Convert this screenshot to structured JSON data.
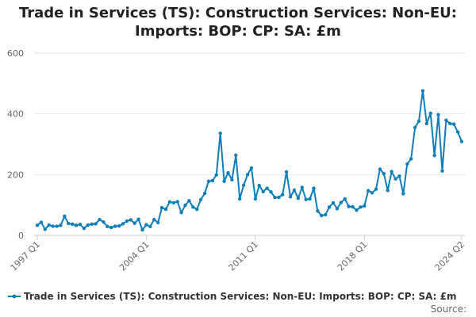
{
  "chart_data": {
    "type": "line",
    "title": "Trade in Services (TS): Construction Services: Non-EU: Imports: BOP: CP: SA: £m",
    "xlabel": "",
    "ylabel": "",
    "ylim": [
      0,
      600
    ],
    "yticks": [
      0,
      200,
      400,
      600
    ],
    "ytick_labels": [
      "0",
      "200",
      "400",
      "600"
    ],
    "xticks": [
      {
        "x": "1997 Q1",
        "label": "1997 Q1"
      },
      {
        "x": "2004 Q1",
        "label": "2004 Q1"
      },
      {
        "x": "2011 Q1",
        "label": "2011 Q1"
      },
      {
        "x": "2018 Q1",
        "label": "2018 Q1"
      },
      {
        "x": "2024 Q2",
        "label": "2024 Q2"
      }
    ],
    "grid": true,
    "legend_position": "bottom",
    "color": "#0f7fb8",
    "series": [
      {
        "name": "Trade in Services (TS): Construction Services: Non-EU: Imports: BOP: CP: SA: £m",
        "x": [
          "1997 Q1",
          "1997 Q2",
          "1997 Q3",
          "1997 Q4",
          "1998 Q1",
          "1998 Q2",
          "1998 Q3",
          "1998 Q4",
          "1999 Q1",
          "1999 Q2",
          "1999 Q3",
          "1999 Q4",
          "2000 Q1",
          "2000 Q2",
          "2000 Q3",
          "2000 Q4",
          "2001 Q1",
          "2001 Q2",
          "2001 Q3",
          "2001 Q4",
          "2002 Q1",
          "2002 Q2",
          "2002 Q3",
          "2002 Q4",
          "2003 Q1",
          "2003 Q2",
          "2003 Q3",
          "2003 Q4",
          "2004 Q1",
          "2004 Q2",
          "2004 Q3",
          "2004 Q4",
          "2005 Q1",
          "2005 Q2",
          "2005 Q3",
          "2005 Q4",
          "2006 Q1",
          "2006 Q2",
          "2006 Q3",
          "2006 Q4",
          "2007 Q1",
          "2007 Q2",
          "2007 Q3",
          "2007 Q4",
          "2008 Q1",
          "2008 Q2",
          "2008 Q3",
          "2008 Q4",
          "2009 Q1",
          "2009 Q2",
          "2009 Q3",
          "2009 Q4",
          "2010 Q1",
          "2010 Q2",
          "2010 Q3",
          "2010 Q4",
          "2011 Q1",
          "2011 Q2",
          "2011 Q3",
          "2011 Q4",
          "2012 Q1",
          "2012 Q2",
          "2012 Q3",
          "2012 Q4",
          "2013 Q1",
          "2013 Q2",
          "2013 Q3",
          "2013 Q4",
          "2014 Q1",
          "2014 Q2",
          "2014 Q3",
          "2014 Q4",
          "2015 Q1",
          "2015 Q2",
          "2015 Q3",
          "2015 Q4",
          "2016 Q1",
          "2016 Q2",
          "2016 Q3",
          "2016 Q4",
          "2017 Q1",
          "2017 Q2",
          "2017 Q3",
          "2017 Q4",
          "2018 Q1",
          "2018 Q2",
          "2018 Q3",
          "2018 Q4",
          "2019 Q1",
          "2019 Q2",
          "2019 Q3",
          "2019 Q4",
          "2020 Q1",
          "2020 Q2",
          "2020 Q3",
          "2020 Q4",
          "2021 Q1",
          "2021 Q2",
          "2021 Q3",
          "2021 Q4",
          "2022 Q1",
          "2022 Q2",
          "2022 Q3",
          "2022 Q4",
          "2023 Q1",
          "2023 Q2",
          "2023 Q3",
          "2023 Q4",
          "2024 Q1",
          "2024 Q2"
        ],
        "values": [
          33,
          43,
          20,
          34,
          30,
          30,
          33,
          63,
          39,
          37,
          33,
          36,
          23,
          34,
          37,
          38,
          52,
          44,
          29,
          26,
          30,
          31,
          38,
          47,
          51,
          40,
          53,
          18,
          35,
          29,
          52,
          42,
          91,
          86,
          110,
          107,
          111,
          75,
          99,
          114,
          93,
          86,
          118,
          138,
          178,
          180,
          199,
          336,
          178,
          206,
          183,
          264,
          120,
          165,
          200,
          222,
          120,
          164,
          144,
          155,
          143,
          125,
          125,
          134,
          209,
          127,
          149,
          122,
          158,
          118,
          120,
          155,
          80,
          65,
          68,
          93,
          107,
          88,
          108,
          120,
          95,
          94,
          83,
          93,
          97,
          147,
          140,
          152,
          218,
          203,
          148,
          210,
          186,
          195,
          137,
          235,
          252,
          355,
          376,
          476,
          368,
          402,
          263,
          397,
          212,
          379,
          368,
          366,
          340,
          309
        ]
      }
    ],
    "legend_label": "Trade in Services (TS): Construction Services: Non-EU: Imports: BOP: CP: SA: £m",
    "source_label": "Source:"
  }
}
